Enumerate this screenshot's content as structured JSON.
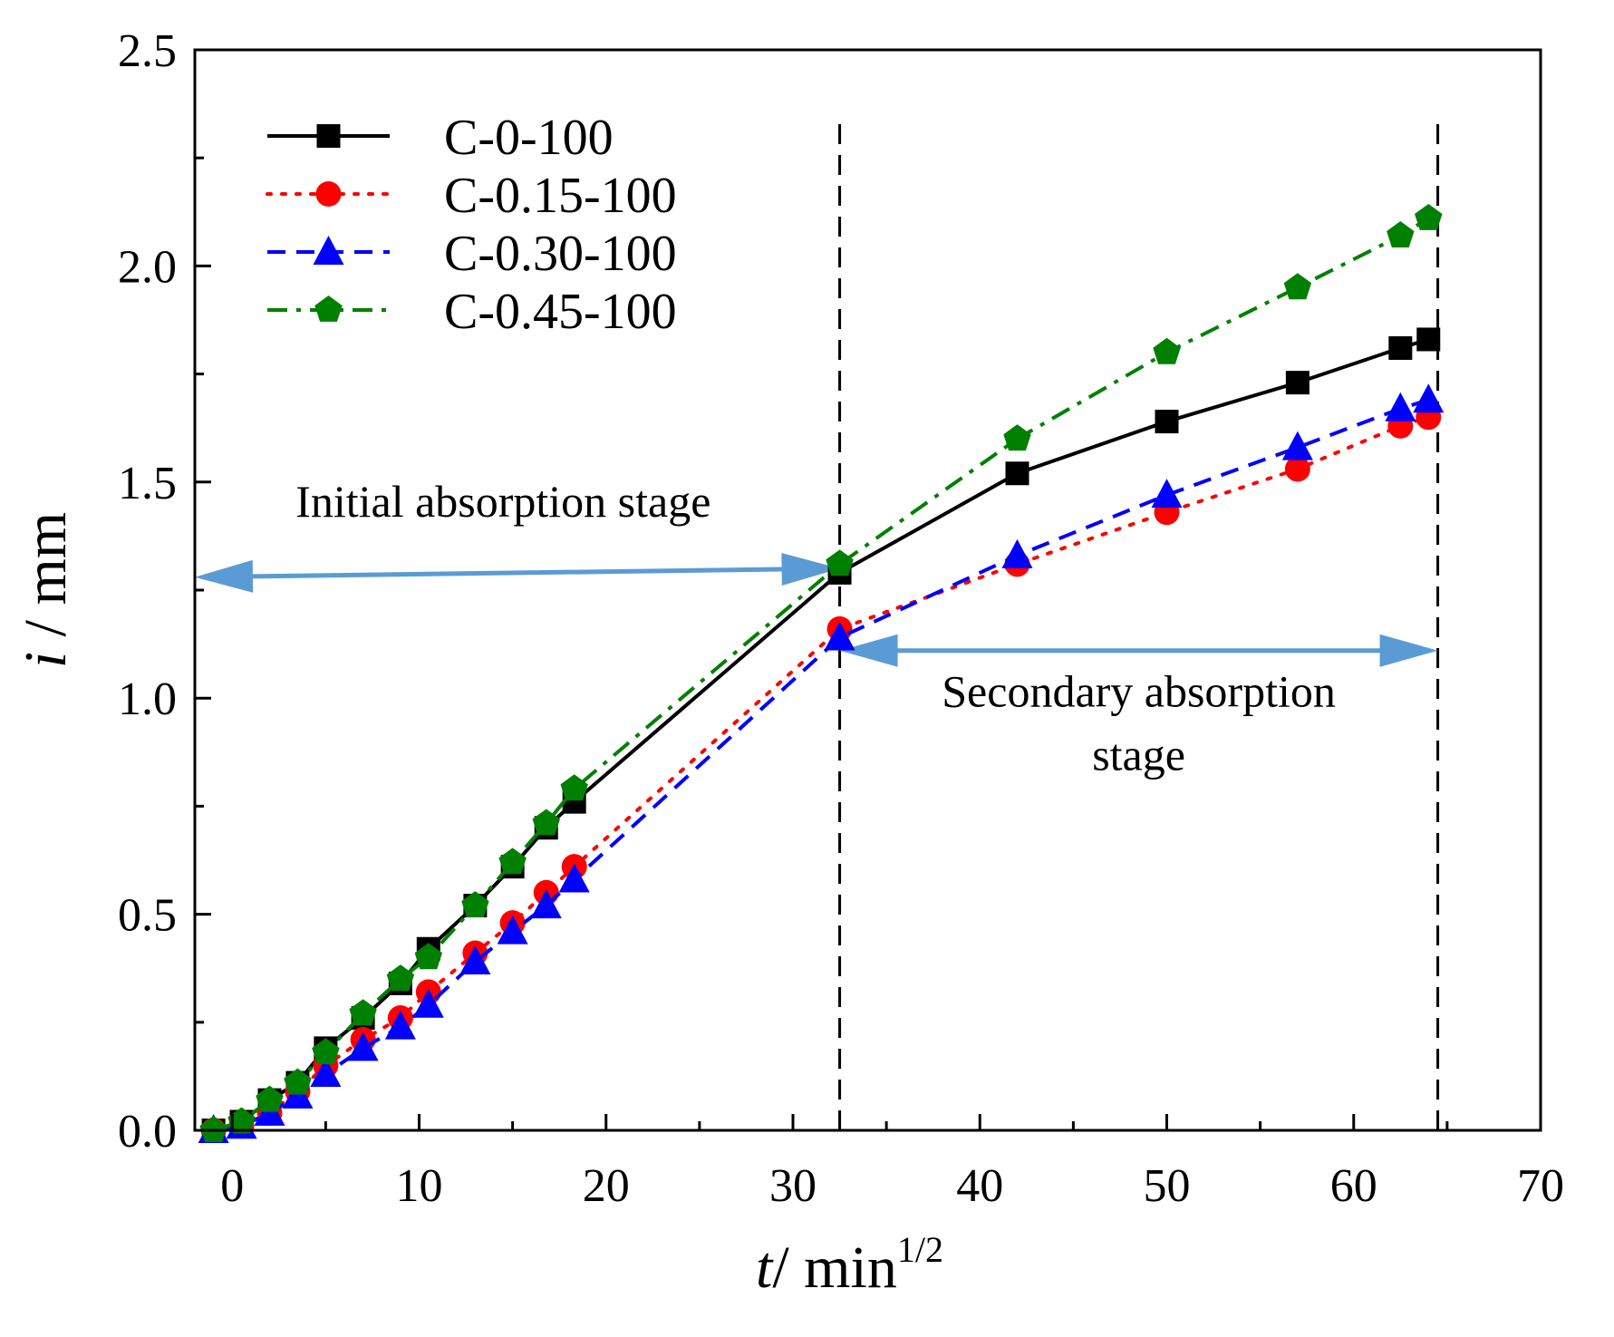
{
  "chart_data": {
    "type": "line",
    "xlabel": {
      "var": "t",
      "unit": "/ min",
      "sup": "1/2"
    },
    "ylabel": {
      "var": "i",
      "unit": " / mm"
    },
    "xlim": [
      -2,
      70
    ],
    "ylim": [
      0,
      2.5
    ],
    "xticks": [
      0,
      10,
      20,
      30,
      40,
      50,
      60,
      70
    ],
    "xtick_labels": [
      "0",
      "10",
      "20",
      "30",
      "40",
      "50",
      "60",
      "70"
    ],
    "yticks": [
      0,
      0.5,
      1.0,
      1.5,
      2.0,
      2.5
    ],
    "ytick_labels": [
      "0.0",
      "0.5",
      "1.0",
      "1.5",
      "2.0",
      "2.5"
    ],
    "grid": false,
    "legend_position": "top-left",
    "series": [
      {
        "name": "C-0-100",
        "color": "#000000",
        "line_style": "solid",
        "marker": "square",
        "x": [
          -1,
          0.5,
          2,
          3.5,
          5,
          7,
          9,
          10.5,
          13,
          15,
          16.8,
          18.3,
          32.5,
          42,
          50,
          57,
          62.5,
          64
        ],
        "y": [
          0.0,
          0.02,
          0.07,
          0.11,
          0.19,
          0.26,
          0.34,
          0.42,
          0.52,
          0.61,
          0.7,
          0.76,
          1.29,
          1.52,
          1.64,
          1.73,
          1.81,
          1.83
        ]
      },
      {
        "name": "C-0.15-100",
        "color": "#ff0000",
        "line_style": "dotted",
        "marker": "circle",
        "x": [
          -1,
          0.5,
          2,
          3.5,
          5,
          7,
          9,
          10.5,
          13,
          15,
          16.8,
          18.3,
          32.5,
          42,
          50,
          57,
          62.5,
          64
        ],
        "y": [
          0.0,
          0.01,
          0.04,
          0.09,
          0.15,
          0.21,
          0.26,
          0.32,
          0.41,
          0.48,
          0.55,
          0.61,
          1.16,
          1.31,
          1.43,
          1.53,
          1.63,
          1.65
        ]
      },
      {
        "name": "C-0.30-100",
        "color": "#0000ff",
        "line_style": "dashed",
        "marker": "triangle",
        "x": [
          -1,
          0.5,
          2,
          3.5,
          5,
          7,
          9,
          10.5,
          13,
          15,
          16.8,
          18.3,
          32.5,
          42,
          50,
          57,
          62.5,
          64
        ],
        "y": [
          0.0,
          0.01,
          0.04,
          0.08,
          0.13,
          0.19,
          0.24,
          0.29,
          0.39,
          0.46,
          0.52,
          0.58,
          1.14,
          1.33,
          1.47,
          1.58,
          1.67,
          1.69
        ]
      },
      {
        "name": "C-0.45-100",
        "color": "#008000",
        "line_style": "dashdot",
        "marker": "pentagon",
        "x": [
          -1,
          0.5,
          2,
          3.5,
          5,
          7,
          9,
          10.5,
          13,
          15,
          16.8,
          18.3,
          32.5,
          42,
          50,
          57,
          62.5,
          64
        ],
        "y": [
          0.0,
          0.02,
          0.07,
          0.11,
          0.18,
          0.27,
          0.35,
          0.4,
          0.52,
          0.62,
          0.71,
          0.79,
          1.31,
          1.6,
          1.8,
          1.95,
          2.07,
          2.11
        ]
      }
    ],
    "reference_lines": [
      {
        "orientation": "vertical",
        "x": 32.5,
        "style": "dashed",
        "color": "#000000",
        "y_from": 0,
        "y_to": 2.33
      },
      {
        "orientation": "vertical",
        "x": 64.5,
        "style": "dashed",
        "color": "#000000",
        "y_from": 0,
        "y_to": 2.33
      }
    ],
    "annotations": [
      {
        "text": [
          "Initial absorption stage"
        ],
        "arrow": {
          "x1": -2,
          "y1": 1.28,
          "x2": 32.5,
          "y2": 1.3,
          "color": "#5b9bd5",
          "heads": "both"
        },
        "text_anchor_xy": [
          14.5,
          1.42
        ]
      },
      {
        "text": [
          "Secondary absorption",
          "stage"
        ],
        "arrow": {
          "x1": 32.5,
          "y1": 1.11,
          "x2": 64.5,
          "y2": 1.11,
          "color": "#5b9bd5",
          "heads": "both"
        },
        "text_anchor_xy": [
          48.5,
          0.98
        ]
      }
    ]
  }
}
